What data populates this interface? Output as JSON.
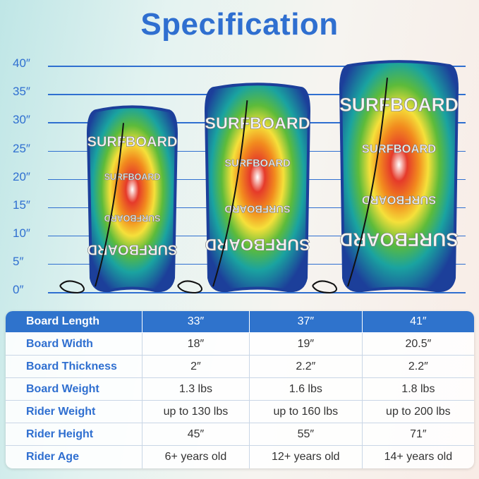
{
  "title": "Specification",
  "ruler": {
    "unit": "inch",
    "ticks": [
      "40″",
      "35″",
      "30″",
      "25″",
      "20″",
      "15″",
      "10″",
      "5″",
      "0″"
    ],
    "values": [
      40,
      35,
      30,
      25,
      20,
      15,
      10,
      5,
      0
    ],
    "color": "#2f6fd0"
  },
  "boards": [
    {
      "length": 33,
      "logo": "SURFBOARD"
    },
    {
      "length": 37,
      "logo": "SURFBOARD"
    },
    {
      "length": 41,
      "logo": "SURFBOARD"
    }
  ],
  "table": {
    "header": {
      "label": "Board Length",
      "values": [
        "33″",
        "37″",
        "41″"
      ]
    },
    "rows": [
      {
        "label": "Board Width",
        "values": [
          "18″",
          "19″",
          "20.5″"
        ]
      },
      {
        "label": "Board Thickness",
        "values": [
          "2″",
          "2.2″",
          "2.2″"
        ]
      },
      {
        "label": "Board Weight",
        "values": [
          "1.3 lbs",
          "1.6 lbs",
          "1.8 lbs"
        ]
      },
      {
        "label": "Rider Weight",
        "values": [
          "up to 130 lbs",
          "up to 160 lbs",
          "up to 200 lbs"
        ]
      },
      {
        "label": "Rider Height",
        "values": [
          "45″",
          "55″",
          "71″"
        ]
      },
      {
        "label": "Rider Age",
        "values": [
          "6+ years old",
          "12+ years old",
          "14+ years old"
        ]
      }
    ]
  },
  "colors": {
    "accent": "#2f6fd0",
    "header_bg": "#2f73cc"
  }
}
